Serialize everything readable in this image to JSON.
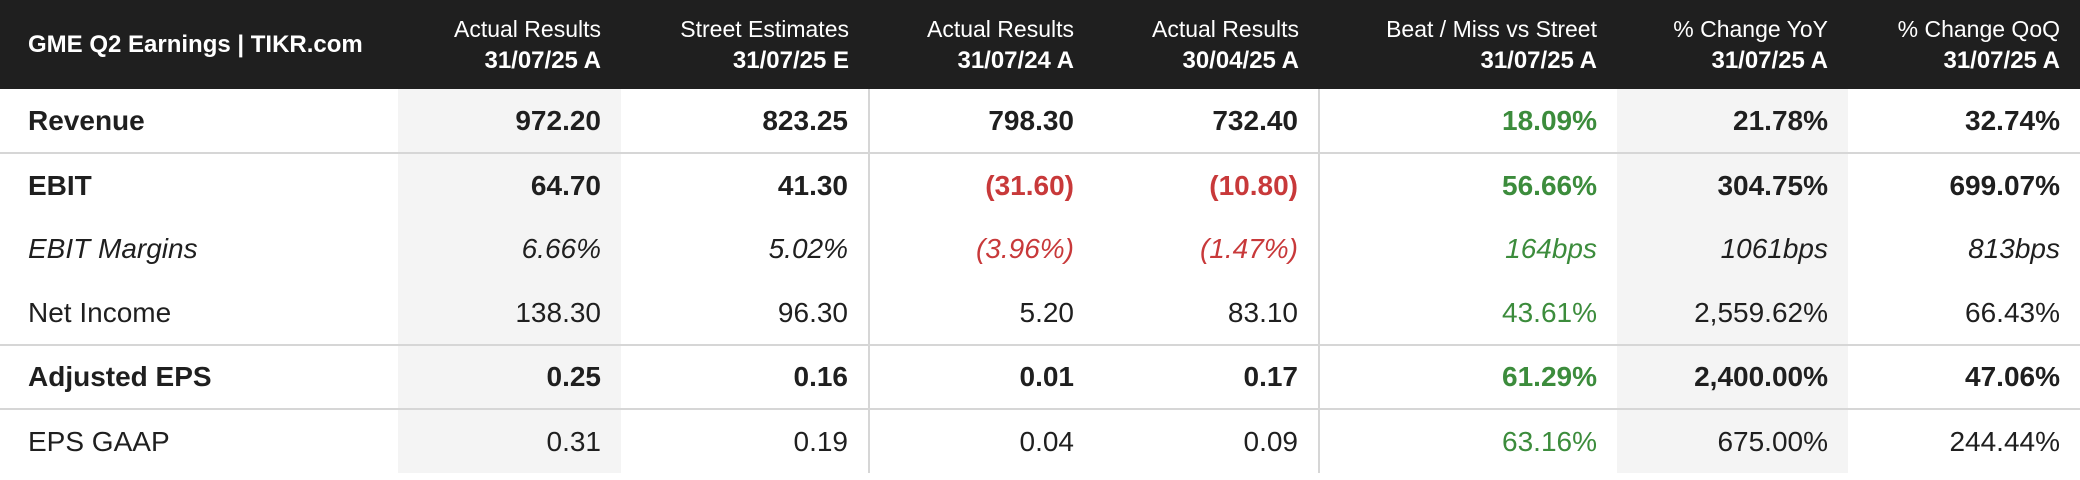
{
  "table": {
    "title": "GME Q2 Earnings | TIKR.com",
    "columns": [
      {
        "label": "Actual Results",
        "date": "31/07/25 A"
      },
      {
        "label": "Street Estimates",
        "date": "31/07/25 E"
      },
      {
        "label": "Actual Results",
        "date": "31/07/24 A"
      },
      {
        "label": "Actual Results",
        "date": "30/04/25 A"
      },
      {
        "label": "Beat / Miss vs Street",
        "date": "31/07/25 A"
      },
      {
        "label": "% Change YoY",
        "date": "31/07/25 A"
      },
      {
        "label": "% Change QoQ",
        "date": "31/07/25 A"
      }
    ],
    "rows": [
      {
        "label": "Revenue",
        "values": [
          "972.20",
          "823.25",
          "798.30",
          "732.40",
          "18.09%",
          "21.78%",
          "32.74%"
        ]
      },
      {
        "label": "EBIT",
        "values": [
          "64.70",
          "41.30",
          "(31.60)",
          "(10.80)",
          "56.66%",
          "304.75%",
          "699.07%"
        ]
      },
      {
        "label": "EBIT Margins",
        "values": [
          "6.66%",
          "5.02%",
          "(3.96%)",
          "(1.47%)",
          "164bps",
          "1061bps",
          "813bps"
        ]
      },
      {
        "label": "Net Income",
        "values": [
          "138.30",
          "96.30",
          "5.20",
          "83.10",
          "43.61%",
          "2,559.62%",
          "66.43%"
        ]
      },
      {
        "label": "Adjusted EPS",
        "values": [
          "0.25",
          "0.16",
          "0.01",
          "0.17",
          "61.29%",
          "2,400.00%",
          "47.06%"
        ]
      },
      {
        "label": "EPS GAAP",
        "values": [
          "0.31",
          "0.19",
          "0.04",
          "0.09",
          "63.16%",
          "675.00%",
          "244.44%"
        ]
      }
    ]
  },
  "colors": {
    "header_background": "#1f1f1f",
    "negative": "#c8393a",
    "beat": "#3c8c3c",
    "shaded_column": "#f4f4f4"
  }
}
